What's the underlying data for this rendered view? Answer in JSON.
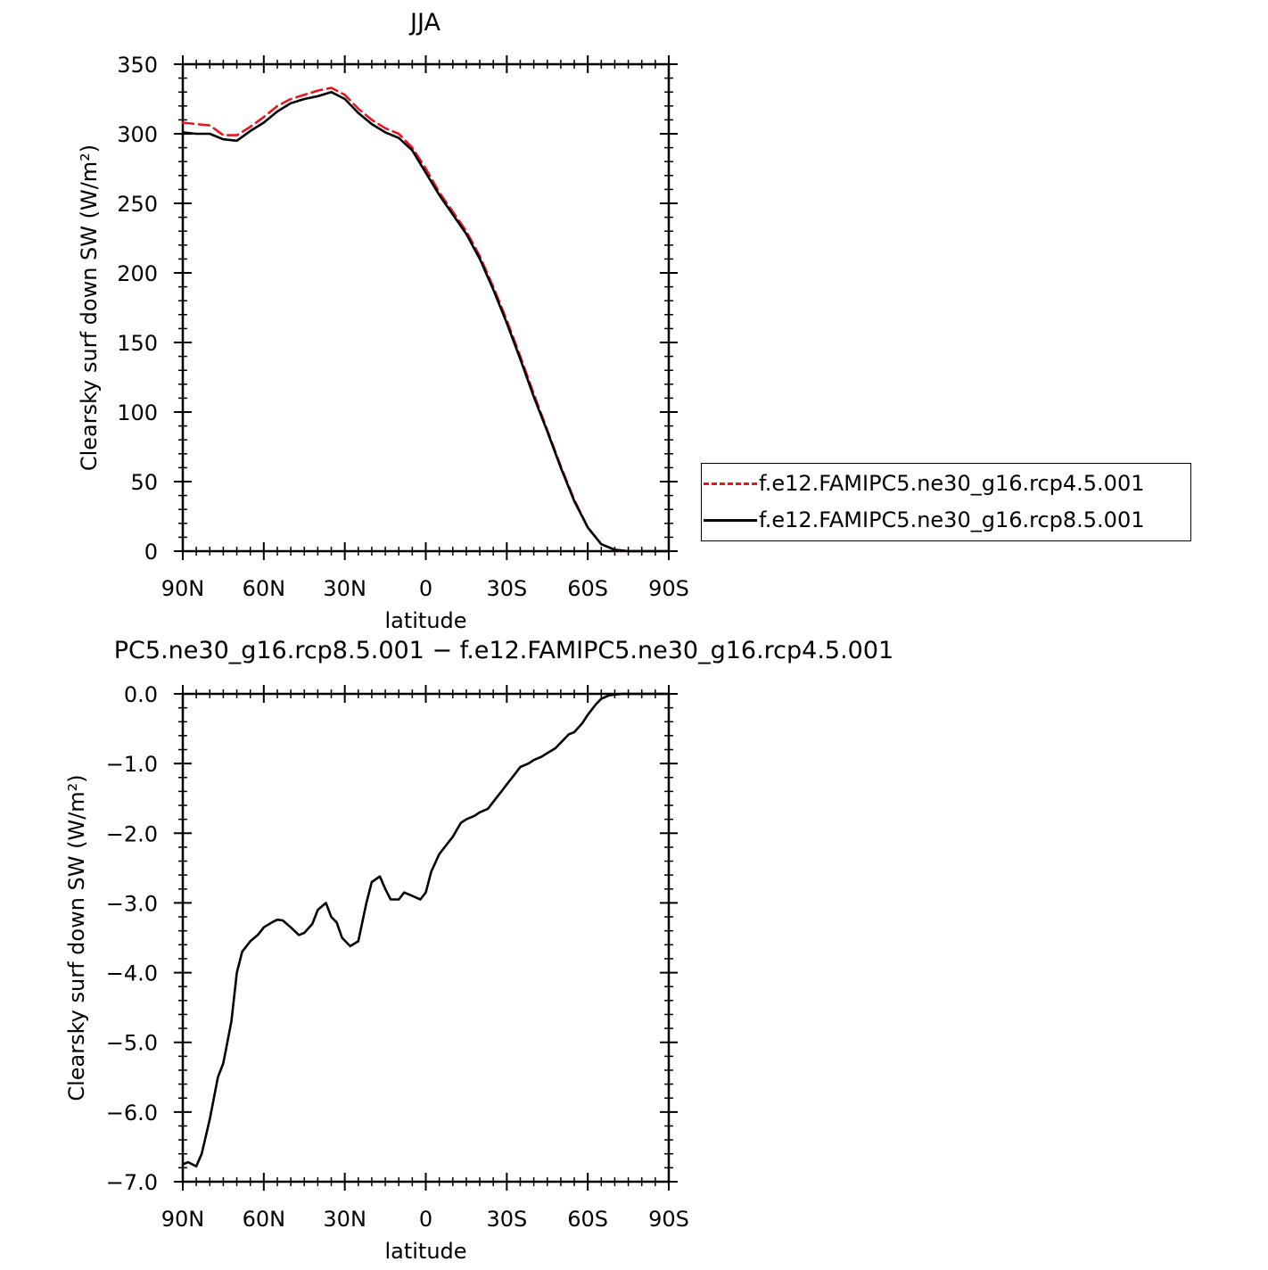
{
  "chart_data": [
    {
      "type": "line",
      "title": "JJA",
      "xlabel": "latitude",
      "ylabel": "Clearsky surf down SW (W/m²)",
      "xlim": [
        90,
        -90
      ],
      "ylim": [
        0,
        350
      ],
      "xticks": [
        {
          "value": 90,
          "label": "90N"
        },
        {
          "value": 60,
          "label": "60N"
        },
        {
          "value": 30,
          "label": "30N"
        },
        {
          "value": 0,
          "label": "0"
        },
        {
          "value": -30,
          "label": "30S"
        },
        {
          "value": -60,
          "label": "60S"
        },
        {
          "value": -90,
          "label": "90S"
        }
      ],
      "yticks": [
        {
          "value": 0,
          "label": "0"
        },
        {
          "value": 50,
          "label": "50"
        },
        {
          "value": 100,
          "label": "100"
        },
        {
          "value": 150,
          "label": "150"
        },
        {
          "value": 200,
          "label": "200"
        },
        {
          "value": 250,
          "label": "250"
        },
        {
          "value": 300,
          "label": "300"
        },
        {
          "value": 350,
          "label": "350"
        }
      ],
      "legend_position": "right",
      "series": [
        {
          "name": "f.e12.FAMIPC5.ne30_g16.rcp4.5.001",
          "color": "#e8141c",
          "dash": "dashed",
          "x": [
            90,
            85,
            80,
            75,
            70,
            65,
            60,
            55,
            50,
            45,
            40,
            35,
            30,
            25,
            20,
            15,
            10,
            5,
            0,
            -5,
            -10,
            -15,
            -20,
            -25,
            -30,
            -35,
            -40,
            -45,
            -50,
            -55,
            -60,
            -65,
            -70,
            -75,
            -80,
            -85,
            -90
          ],
          "y": [
            308,
            307,
            306,
            299,
            299,
            305,
            312,
            320,
            325,
            328,
            331,
            333,
            328,
            318,
            310,
            304,
            300,
            290,
            275,
            258,
            244,
            230,
            212,
            190,
            166,
            140,
            113,
            87,
            61,
            37,
            17,
            5,
            1,
            0,
            0,
            0,
            0
          ]
        },
        {
          "name": "f.e12.FAMIPC5.ne30_g16.rcp8.5.001",
          "color": "#000000",
          "dash": "solid",
          "x": [
            90,
            85,
            80,
            75,
            70,
            65,
            60,
            55,
            50,
            45,
            40,
            35,
            30,
            25,
            20,
            15,
            10,
            5,
            0,
            -5,
            -10,
            -15,
            -20,
            -25,
            -30,
            -35,
            -40,
            -45,
            -50,
            -55,
            -60,
            -65,
            -70,
            -75,
            -80,
            -85,
            -90
          ],
          "y": [
            301,
            300,
            300,
            296,
            295,
            302,
            308,
            316,
            322,
            325,
            327,
            330,
            325,
            315,
            307,
            301,
            297,
            288,
            272,
            256,
            242,
            228,
            210,
            188,
            164,
            138,
            111,
            86,
            60,
            36,
            17,
            5,
            1,
            0,
            0,
            0,
            0
          ]
        }
      ]
    },
    {
      "type": "line",
      "title": "PC5.ne30_g16.rcp8.5.001 − f.e12.FAMIPC5.ne30_g16.rcp4.5.001",
      "xlabel": "latitude",
      "ylabel": "Clearsky surf down SW (W/m²)",
      "xlim": [
        90,
        -90
      ],
      "ylim": [
        -7,
        0
      ],
      "xticks": [
        {
          "value": 90,
          "label": "90N"
        },
        {
          "value": 60,
          "label": "60N"
        },
        {
          "value": 30,
          "label": "30N"
        },
        {
          "value": 0,
          "label": "0"
        },
        {
          "value": -30,
          "label": "30S"
        },
        {
          "value": -60,
          "label": "60S"
        },
        {
          "value": -90,
          "label": "90S"
        }
      ],
      "yticks": [
        {
          "value": 0,
          "label": "0.0"
        },
        {
          "value": -1,
          "label": "−1.0"
        },
        {
          "value": -2,
          "label": "−2.0"
        },
        {
          "value": -3,
          "label": "−3.0"
        },
        {
          "value": -4,
          "label": "−4.0"
        },
        {
          "value": -5,
          "label": "−5.0"
        },
        {
          "value": -6,
          "label": "−6.0"
        },
        {
          "value": -7,
          "label": "−7.0"
        }
      ],
      "series": [
        {
          "color": "#000000",
          "dash": "solid",
          "x": [
            90,
            88,
            85,
            83,
            80,
            77,
            75,
            72,
            70,
            68,
            65,
            62,
            60,
            57,
            55,
            53,
            50,
            47,
            45,
            42,
            40,
            37,
            35,
            33,
            31,
            28,
            25,
            22,
            20,
            17,
            15,
            13,
            10,
            8,
            5,
            2,
            0,
            -2,
            -5,
            -8,
            -10,
            -13,
            -15,
            -18,
            -20,
            -23,
            -25,
            -28,
            -30,
            -33,
            -35,
            -38,
            -40,
            -43,
            -45,
            -48,
            -50,
            -53,
            -55,
            -58,
            -60,
            -63,
            -65,
            -68,
            -70,
            -73,
            -75,
            -80,
            -85,
            -90
          ],
          "y": [
            -6.75,
            -6.72,
            -6.78,
            -6.6,
            -6.1,
            -5.5,
            -5.3,
            -4.7,
            -4.0,
            -3.7,
            -3.55,
            -3.45,
            -3.35,
            -3.28,
            -3.24,
            -3.25,
            -3.35,
            -3.46,
            -3.43,
            -3.3,
            -3.1,
            -3.0,
            -3.2,
            -3.28,
            -3.5,
            -3.62,
            -3.55,
            -3.0,
            -2.7,
            -2.62,
            -2.8,
            -2.95,
            -2.95,
            -2.85,
            -2.9,
            -2.95,
            -2.85,
            -2.55,
            -2.3,
            -2.15,
            -2.05,
            -1.85,
            -1.8,
            -1.75,
            -1.7,
            -1.65,
            -1.55,
            -1.4,
            -1.3,
            -1.15,
            -1.05,
            -1.0,
            -0.95,
            -0.9,
            -0.85,
            -0.78,
            -0.7,
            -0.58,
            -0.55,
            -0.42,
            -0.3,
            -0.15,
            -0.07,
            -0.02,
            -0.01,
            0,
            0,
            0,
            0,
            0
          ]
        }
      ]
    }
  ]
}
